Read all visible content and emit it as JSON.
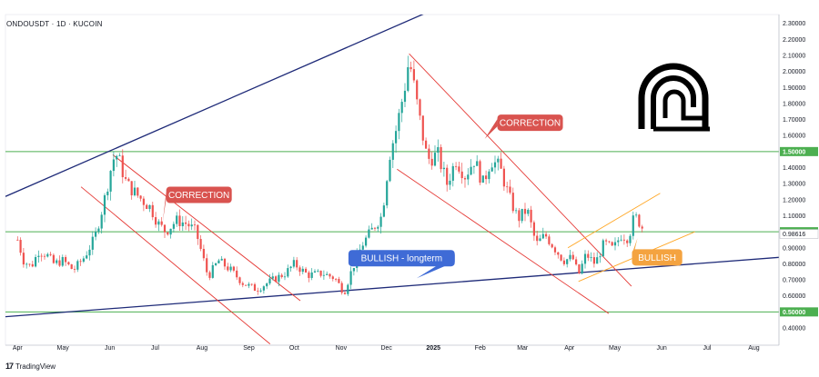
{
  "header": {
    "symbol_line": "ONDOUSDT · 1D · KUCOIN"
  },
  "footer": {
    "brand": "TradingView",
    "brand_mark": "17"
  },
  "colors": {
    "up": "#26a69a",
    "down": "#ef5350",
    "resistance_line": "#1e2a78",
    "horizontal_level": "#4caf50",
    "correction": "#e53935",
    "bullish_channel": "#ffa726",
    "correction_box": "#d9534f",
    "bullish_box": "#3f6bd6",
    "bullish_orange_box": "#f4a340"
  },
  "chart_data": {
    "type": "candlestick",
    "symbol": "ONDOUSDT",
    "timeframe": "1D",
    "exchange": "KUCOIN",
    "x_tick_labels": [
      "Apr",
      "May",
      "Jun",
      "Jul",
      "Aug",
      "Sep",
      "Oct",
      "Nov",
      "Dec",
      "2025",
      "Feb",
      "Mar",
      "Apr",
      "May",
      "Jun",
      "Jul",
      "Aug"
    ],
    "y_tick_labels": [
      "2.30000",
      "2.20000",
      "2.10000",
      "2.00000",
      "1.90000",
      "1.80000",
      "1.70000",
      "1.60000",
      "1.50000",
      "1.40000",
      "1.30000",
      "1.20000",
      "1.10000",
      "1.00000",
      "0.90000",
      "0.80000",
      "0.70000",
      "0.60000",
      "0.50000",
      "0.40000"
    ],
    "ylim": [
      0.36,
      2.32
    ],
    "last_price": 0.98616,
    "last_price_label": "0.98616",
    "key_levels": [
      {
        "value": 1.5,
        "label": "1.50000"
      },
      {
        "value": 1.0,
        "label": "1.00000"
      },
      {
        "value": 0.5,
        "label": "0.50000"
      }
    ],
    "price_path": [
      [
        "2024-04-01",
        0.95
      ],
      [
        "2024-04-05",
        0.82
      ],
      [
        "2024-04-10",
        0.78
      ],
      [
        "2024-04-15",
        0.88
      ],
      [
        "2024-04-20",
        0.86
      ],
      [
        "2024-04-25",
        0.8
      ],
      [
        "2024-05-01",
        0.82
      ],
      [
        "2024-05-08",
        0.76
      ],
      [
        "2024-05-15",
        0.84
      ],
      [
        "2024-05-22",
        0.96
      ],
      [
        "2024-05-28",
        1.18
      ],
      [
        "2024-06-03",
        1.45
      ],
      [
        "2024-06-06",
        1.48
      ],
      [
        "2024-06-12",
        1.3
      ],
      [
        "2024-06-20",
        1.22
      ],
      [
        "2024-06-28",
        1.15
      ],
      [
        "2024-07-03",
        1.05
      ],
      [
        "2024-07-08",
        1.0
      ],
      [
        "2024-07-15",
        1.07
      ],
      [
        "2024-07-22",
        1.05
      ],
      [
        "2024-07-28",
        1.0
      ],
      [
        "2024-08-05",
        0.72
      ],
      [
        "2024-08-12",
        0.82
      ],
      [
        "2024-08-20",
        0.76
      ],
      [
        "2024-08-28",
        0.68
      ],
      [
        "2024-09-06",
        0.64
      ],
      [
        "2024-09-15",
        0.69
      ],
      [
        "2024-09-25",
        0.74
      ],
      [
        "2024-10-01",
        0.8
      ],
      [
        "2024-10-10",
        0.73
      ],
      [
        "2024-10-20",
        0.74
      ],
      [
        "2024-10-28",
        0.71
      ],
      [
        "2024-11-03",
        0.62
      ],
      [
        "2024-11-08",
        0.76
      ],
      [
        "2024-11-15",
        0.92
      ],
      [
        "2024-11-22",
        1.02
      ],
      [
        "2024-11-28",
        1.1
      ],
      [
        "2024-12-03",
        1.48
      ],
      [
        "2024-12-08",
        1.66
      ],
      [
        "2024-12-13",
        1.9
      ],
      [
        "2024-12-16",
        2.08
      ],
      [
        "2024-12-22",
        1.75
      ],
      [
        "2024-12-28",
        1.45
      ],
      [
        "2025-01-04",
        1.48
      ],
      [
        "2025-01-10",
        1.3
      ],
      [
        "2025-01-16",
        1.45
      ],
      [
        "2025-01-22",
        1.35
      ],
      [
        "2025-01-28",
        1.45
      ],
      [
        "2025-02-03",
        1.3
      ],
      [
        "2025-02-08",
        1.45
      ],
      [
        "2025-02-14",
        1.4
      ],
      [
        "2025-02-20",
        1.22
      ],
      [
        "2025-02-26",
        1.08
      ],
      [
        "2025-03-04",
        1.14
      ],
      [
        "2025-03-10",
        0.92
      ],
      [
        "2025-03-16",
        0.98
      ],
      [
        "2025-03-22",
        0.9
      ],
      [
        "2025-03-28",
        0.82
      ],
      [
        "2025-04-03",
        0.84
      ],
      [
        "2025-04-07",
        0.73
      ],
      [
        "2025-04-12",
        0.86
      ],
      [
        "2025-04-18",
        0.8
      ],
      [
        "2025-04-24",
        0.93
      ],
      [
        "2025-04-30",
        0.89
      ],
      [
        "2025-05-05",
        0.98
      ],
      [
        "2025-05-10",
        0.96
      ],
      [
        "2025-05-14",
        1.1
      ],
      [
        "2025-05-18",
        1.05
      ],
      [
        "2025-05-21",
        0.99
      ]
    ],
    "trendlines": [
      {
        "name": "upper-resistance",
        "color": "resistance_line",
        "width": 1.3,
        "from": [
          "2024-03-24",
          1.22
        ],
        "to": [
          "2025-03-04",
          2.64
        ]
      },
      {
        "name": "longterm-support",
        "color": "resistance_line",
        "width": 1.3,
        "from": [
          "2024-03-24",
          0.47
        ],
        "to": [
          "2025-08-31",
          0.85
        ]
      },
      {
        "name": "correction1-upper",
        "color": "correction",
        "width": 0.9,
        "from": [
          "2024-06-03",
          1.48
        ],
        "to": [
          "2024-10-05",
          0.57
        ]
      },
      {
        "name": "correction1-lower",
        "color": "correction",
        "width": 0.9,
        "from": [
          "2024-05-13",
          1.28
        ],
        "to": [
          "2024-09-15",
          0.3
        ]
      },
      {
        "name": "correction2-upper",
        "color": "correction",
        "width": 0.9,
        "from": [
          "2024-12-16",
          2.11
        ],
        "to": [
          "2025-05-12",
          0.66
        ]
      },
      {
        "name": "correction2-lower",
        "color": "correction",
        "width": 0.9,
        "from": [
          "2024-12-08",
          1.39
        ],
        "to": [
          "2025-04-27",
          0.49
        ]
      },
      {
        "name": "bullish-channel-lower",
        "color": "bullish_channel",
        "width": 0.9,
        "from": [
          "2025-04-07",
          0.69
        ],
        "to": [
          "2025-06-23",
          1.0
        ]
      },
      {
        "name": "bullish-channel-upper",
        "color": "bullish_channel",
        "width": 0.9,
        "from": [
          "2025-03-31",
          0.9
        ],
        "to": [
          "2025-05-31",
          1.24
        ]
      }
    ],
    "annotations": [
      {
        "text": "CORRECTION",
        "date": "2024-07-30",
        "price": 1.23,
        "style": "correction_box",
        "pointer_to": [
          "2024-07-06",
          1.06
        ]
      },
      {
        "text": "CORRECTION",
        "date": "2025-03-06",
        "price": 1.68,
        "style": "correction_box",
        "pointer_to": [
          "2025-02-04",
          1.58
        ]
      },
      {
        "text": "BULLISH - longterm",
        "date": "2024-12-11",
        "price": 0.835,
        "style": "bullish_box",
        "pointer_to": [
          "2024-12-21",
          0.71
        ]
      },
      {
        "text": "BULLISH",
        "date": "2025-05-29",
        "price": 0.84,
        "style": "bullish_orange_box",
        "pointer_to": [
          "2025-05-16",
          0.96
        ]
      }
    ]
  }
}
